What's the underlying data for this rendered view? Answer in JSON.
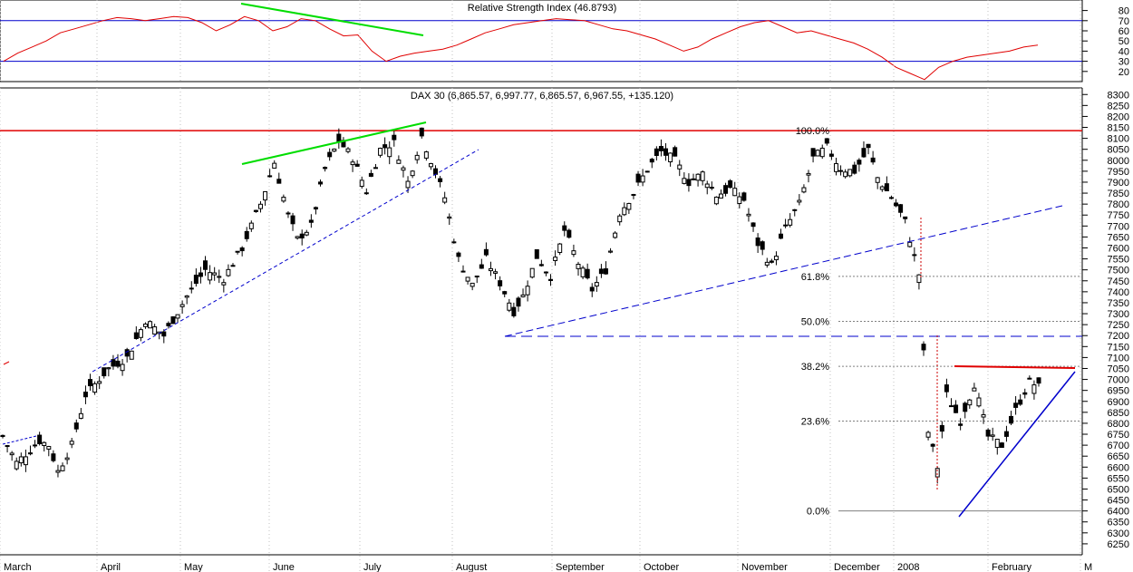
{
  "rsi_panel": {
    "title": "Relative Strength Index (46.8793)",
    "y_ticks": [
      "80",
      "70",
      "60",
      "50",
      "40",
      "30",
      "20"
    ],
    "overbought": 70,
    "oversold": 30,
    "colors": {
      "line": "#e00000",
      "levels": "#0000cc"
    }
  },
  "price_panel": {
    "title": "DAX 30 (6,865.57, 6,997.77, 6,865.57, 6,967.55, +135.120)",
    "y_ticks": [
      "8300",
      "8250",
      "8200",
      "8150",
      "8100",
      "8050",
      "8000",
      "7950",
      "7900",
      "7850",
      "7800",
      "7750",
      "7700",
      "7650",
      "7600",
      "7550",
      "7500",
      "7450",
      "7400",
      "7350",
      "7300",
      "7250",
      "7200",
      "7150",
      "7100",
      "7050",
      "7000",
      "6950",
      "6900",
      "6850",
      "6800",
      "6750",
      "6700",
      "6650",
      "6600",
      "6550",
      "6500",
      "6450",
      "6400",
      "6350",
      "6300",
      "6250"
    ],
    "fib_levels": [
      {
        "label": "100.0%",
        "value": 8135
      },
      {
        "label": "61.8%",
        "value": 7470
      },
      {
        "label": "50.0%",
        "value": 7265
      },
      {
        "label": "38.2%",
        "value": 7060
      },
      {
        "label": "23.6%",
        "value": 6810
      },
      {
        "label": "0.0%",
        "value": 6400
      }
    ],
    "colors": {
      "resistance": "#e00000",
      "trend": "#0000cc",
      "divergence": "#00dd00",
      "grid": "#808080"
    }
  },
  "x_axis": {
    "months": [
      "March",
      "April",
      "May",
      "June",
      "July",
      "August",
      "September",
      "October",
      "November",
      "December",
      "2008",
      "February",
      "M"
    ]
  },
  "chart_data": {
    "type": "candlestick",
    "series": [
      {
        "name": "DAX 30",
        "type": "candlestick",
        "ohlc_source": "generated-from-anchors",
        "anchors": [
          [
            0,
            6740
          ],
          [
            3,
            6620
          ],
          [
            8,
            6720
          ],
          [
            10,
            6700
          ],
          [
            12,
            6580
          ],
          [
            15,
            6700
          ],
          [
            18,
            6930
          ],
          [
            23,
            7050
          ],
          [
            27,
            7100
          ],
          [
            31,
            7270
          ],
          [
            35,
            7200
          ],
          [
            40,
            7380
          ],
          [
            44,
            7500
          ],
          [
            48,
            7460
          ],
          [
            52,
            7600
          ],
          [
            56,
            7800
          ],
          [
            59,
            7990
          ],
          [
            62,
            7750
          ],
          [
            64,
            7640
          ],
          [
            67,
            7700
          ],
          [
            70,
            7960
          ],
          [
            73,
            8090
          ],
          [
            76,
            8010
          ],
          [
            79,
            7860
          ],
          [
            82,
            8050
          ],
          [
            85,
            8080
          ],
          [
            88,
            7900
          ],
          [
            91,
            8110
          ],
          [
            93,
            8000
          ],
          [
            96,
            7830
          ],
          [
            99,
            7550
          ],
          [
            102,
            7430
          ],
          [
            105,
            7550
          ],
          [
            108,
            7440
          ],
          [
            111,
            7310
          ],
          [
            113,
            7380
          ],
          [
            116,
            7560
          ],
          [
            119,
            7470
          ],
          [
            122,
            7680
          ],
          [
            125,
            7530
          ],
          [
            128,
            7410
          ],
          [
            131,
            7500
          ],
          [
            134,
            7760
          ],
          [
            137,
            7850
          ],
          [
            140,
            7960
          ],
          [
            143,
            8040
          ],
          [
            146,
            8000
          ],
          [
            149,
            7900
          ],
          [
            152,
            7940
          ],
          [
            155,
            7840
          ],
          [
            158,
            7870
          ],
          [
            161,
            7820
          ],
          [
            164,
            7620
          ],
          [
            167,
            7520
          ],
          [
            170,
            7690
          ],
          [
            173,
            7800
          ],
          [
            176,
            8010
          ],
          [
            179,
            8060
          ],
          [
            182,
            7960
          ],
          [
            185,
            7950
          ],
          [
            188,
            8050
          ],
          [
            190,
            7920
          ],
          [
            193,
            7830
          ],
          [
            196,
            7720
          ],
          [
            199,
            7480
          ],
          [
            201,
            6760
          ],
          [
            203,
            6600
          ],
          [
            205,
            6930
          ],
          [
            208,
            6810
          ],
          [
            211,
            6980
          ],
          [
            214,
            6740
          ],
          [
            217,
            6700
          ],
          [
            220,
            6860
          ],
          [
            223,
            6990
          ],
          [
            225,
            6967
          ]
        ]
      }
    ],
    "rsi": {
      "name": "Relative Strength Index",
      "values": [
        30,
        38,
        44,
        50,
        58,
        62,
        66,
        70,
        73,
        72,
        70,
        72,
        74,
        73,
        68,
        60,
        66,
        74,
        70,
        60,
        64,
        72,
        70,
        62,
        55,
        56,
        40,
        30,
        35,
        38,
        40,
        42,
        46,
        52,
        58,
        62,
        66,
        68,
        70,
        72,
        71,
        70,
        66,
        62,
        60,
        56,
        52,
        46,
        40,
        44,
        52,
        58,
        64,
        68,
        70,
        64,
        58,
        60,
        56,
        52,
        48,
        42,
        34,
        24,
        18,
        12,
        24,
        30,
        34,
        36,
        38,
        40,
        44,
        46
      ]
    },
    "x_start": "2007-03",
    "x_end": "2008-03",
    "rsi_ylim": [
      10,
      85
    ],
    "price_ylim": [
      6200,
      8330
    ]
  }
}
